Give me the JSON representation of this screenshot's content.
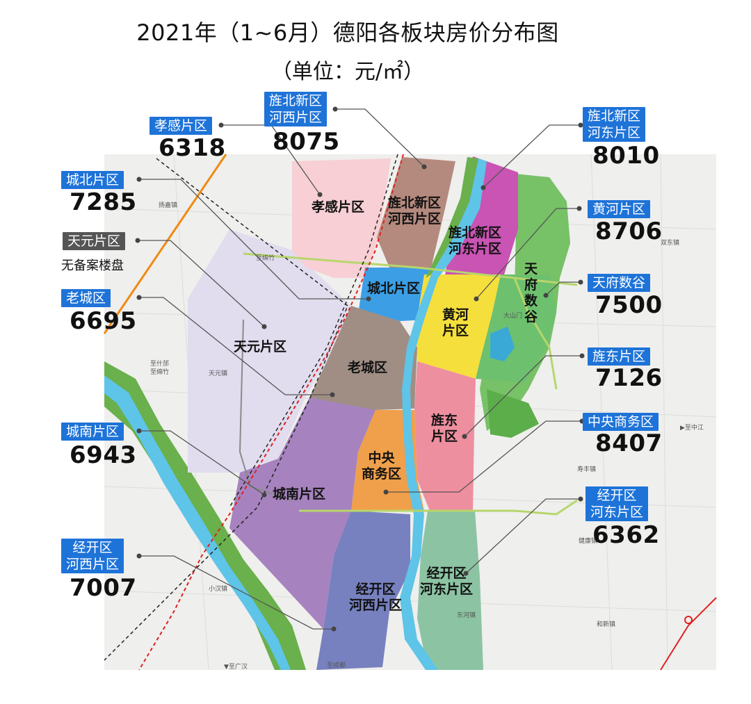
{
  "title": "2021年（1~6月）德阳各板块房价分布图",
  "unit": "（单位：元/㎡）",
  "callouts": [
    {
      "id": "xiaogan",
      "tag": "孝感片区",
      "price": "6318",
      "color": "#1e73d8"
    },
    {
      "id": "jingbei-hexi",
      "tag_line1": "旌北新区",
      "tag_line2": "河西片区",
      "price": "8075",
      "color": "#1e73d8"
    },
    {
      "id": "jingbei-hedong",
      "tag_line1": "旌北新区",
      "tag_line2": "河东片区",
      "price": "8010",
      "color": "#1e73d8"
    },
    {
      "id": "chengbei",
      "tag": "城北片区",
      "price": "7285",
      "color": "#1e73d8"
    },
    {
      "id": "tianyuan",
      "tag": "天元片区",
      "note": "无备案楼盘",
      "color": "#555555"
    },
    {
      "id": "huanghe",
      "tag": "黄河片区",
      "price": "8706",
      "color": "#1e73d8"
    },
    {
      "id": "laocheng",
      "tag": "老城区",
      "price": "6695",
      "color": "#1e73d8"
    },
    {
      "id": "tianfu",
      "tag": "天府数谷",
      "price": "7500",
      "color": "#1e73d8"
    },
    {
      "id": "jingdong",
      "tag": "旌东片区",
      "price": "7126",
      "color": "#1e73d8"
    },
    {
      "id": "chengnan",
      "tag": "城南片区",
      "price": "6943",
      "color": "#1e73d8"
    },
    {
      "id": "cbd",
      "tag": "中央商务区",
      "price": "8407",
      "color": "#1e73d8"
    },
    {
      "id": "jingkai-hedong",
      "tag_line1": "经开区",
      "tag_line2": "河东片区",
      "price": "6362",
      "color": "#1e73d8"
    },
    {
      "id": "jingkai-hexi",
      "tag_line1": "经开区",
      "tag_line2": "河西片区",
      "price": "7007",
      "color": "#1e73d8"
    }
  ],
  "districts": {
    "xiaogan": {
      "label": "孝感片区",
      "color": "#f7cfd4"
    },
    "jingbei_hexi": {
      "line1": "旌北新区",
      "line2": "河西片区",
      "color": "#b58a7e"
    },
    "jingbei_hedong": {
      "line1": "旌北新区",
      "line2": "河东片区",
      "color": "#c954b4"
    },
    "chengbei": {
      "label": "城北片区",
      "color": "#3c9fe6"
    },
    "huanghe": {
      "line1": "黄河",
      "line2": "片区",
      "color": "#f5df3c"
    },
    "tianfu": {
      "line1": "天",
      "line2": "府",
      "line3": "数",
      "line4": "谷",
      "color": "#6dc06e"
    },
    "tianyuan": {
      "label": "天元片区",
      "color": "#e1dcee"
    },
    "laocheng": {
      "label": "老城区",
      "color": "#a08e84"
    },
    "jingdong": {
      "line1": "旌东",
      "line2": "片区",
      "color": "#ee8f9f"
    },
    "cbd": {
      "line1": "中央",
      "line2": "商务区",
      "color": "#f0a04a"
    },
    "chengnan": {
      "label": "城南片区",
      "color": "#a683bf"
    },
    "jingkai_hexi": {
      "line1": "经开区",
      "line2": "河西片区",
      "color": "#7781c0"
    },
    "jingkai_hedong": {
      "line1": "经开区",
      "line2": "河东片区",
      "color": "#8cc4a3"
    }
  },
  "towns": {
    "yangjia": "扬嘉镇",
    "shuangdong": "双东镇",
    "zhisifang": "至什邡",
    "zhimianzhu1": "至绵竹",
    "zhimianzhu2": "至绵竹",
    "tianyuanzhen": "天元镇",
    "dashanmen": "大山门",
    "zhizhongjiang": "▶至中江",
    "shoufeng": "寿丰镇",
    "jiankang": "健康镇",
    "xiaohan": "小汉镇",
    "hexin": "和新镇",
    "zhiguanghan": "▼至广汉",
    "zhichengdu": "至成都",
    "donghe": "东河镇"
  }
}
